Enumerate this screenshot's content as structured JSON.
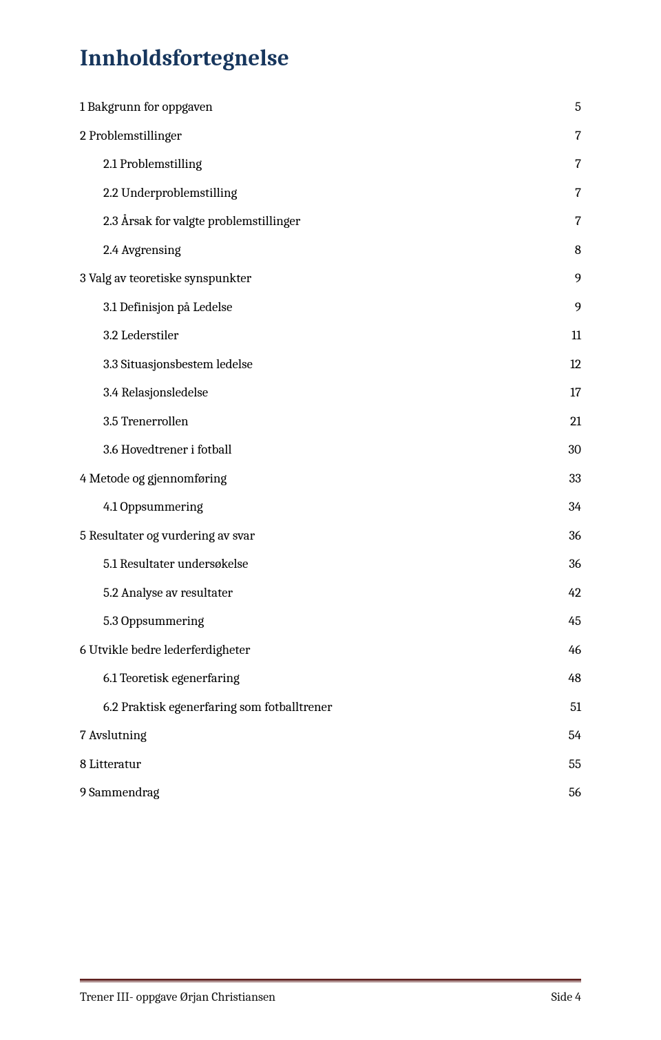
{
  "title": "Innholdsfortegnelse",
  "toc": [
    {
      "level": 0,
      "label": "1 Bakgrunn for oppgaven",
      "page": "5"
    },
    {
      "level": 0,
      "label": "2 Problemstillinger",
      "page": "7"
    },
    {
      "level": 1,
      "label": "2.1 Problemstilling",
      "page": "7"
    },
    {
      "level": 1,
      "label": "2.2 Underproblemstilling",
      "page": "7"
    },
    {
      "level": 1,
      "label": "2.3 Årsak for valgte problemstillinger",
      "page": "7"
    },
    {
      "level": 1,
      "label": "2.4 Avgrensing",
      "page": "8"
    },
    {
      "level": 0,
      "label": "3 Valg av teoretiske synspunkter",
      "page": "9"
    },
    {
      "level": 1,
      "label": "3.1 Definisjon på Ledelse",
      "page": "9"
    },
    {
      "level": 1,
      "label": "3.2 Lederstiler",
      "page": "11"
    },
    {
      "level": 1,
      "label": "3.3 Situasjonsbestem ledelse",
      "page": "12"
    },
    {
      "level": 1,
      "label": "3.4 Relasjonsledelse",
      "page": "17"
    },
    {
      "level": 1,
      "label": "3.5 Trenerrollen",
      "page": "21"
    },
    {
      "level": 1,
      "label": "3.6 Hovedtrener i fotball",
      "page": "30"
    },
    {
      "level": 0,
      "label": "4 Metode og gjennomføring",
      "page": "33"
    },
    {
      "level": 1,
      "label": "4.1 Oppsummering",
      "page": "34"
    },
    {
      "level": 0,
      "label": "5 Resultater og vurdering av svar",
      "page": "36"
    },
    {
      "level": 1,
      "label": "5.1 Resultater undersøkelse",
      "page": "36"
    },
    {
      "level": 1,
      "label": "5.2 Analyse av resultater",
      "page": "42"
    },
    {
      "level": 1,
      "label": "5.3 Oppsummering",
      "page": "45"
    },
    {
      "level": 0,
      "label": "6 Utvikle bedre lederferdigheter",
      "page": "46"
    },
    {
      "level": 1,
      "label": "6.1 Teoretisk egenerfaring",
      "page": "48"
    },
    {
      "level": 1,
      "label": "6.2 Praktisk egenerfaring som fotballtrener",
      "page": "51"
    },
    {
      "level": 0,
      "label": "7 Avslutning",
      "page": "54"
    },
    {
      "level": 0,
      "label": "8 Litteratur",
      "page": "55"
    },
    {
      "level": 0,
      "label": "9 Sammendrag",
      "page": "56"
    }
  ],
  "footer": {
    "left": "Trener III- oppgave Ørjan Christiansen",
    "right": "Side 4"
  },
  "colors": {
    "title": "#17365d",
    "rule_dark": "#622423",
    "text": "#000000",
    "background": "#ffffff"
  },
  "typography": {
    "title_fontsize_pt": 26,
    "body_fontsize_pt": 12,
    "font_family": "Cambria"
  }
}
